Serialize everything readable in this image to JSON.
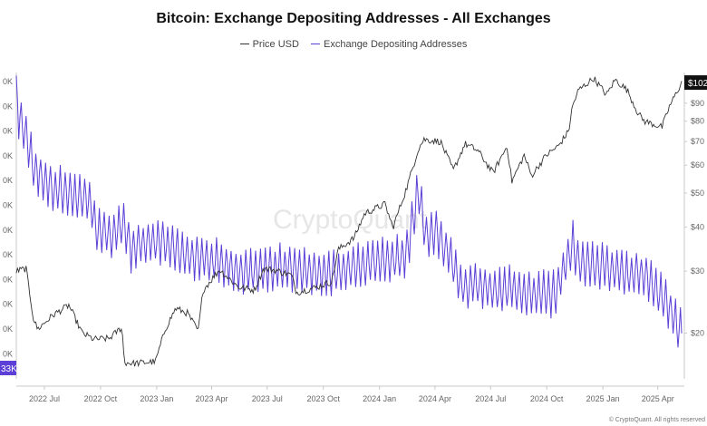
{
  "chart_data": {
    "type": "line",
    "title": "Bitcoin: Exchange Depositing Addresses - All Exchanges",
    "watermark": "CryptoQuant",
    "credit": "© CryptoQuant. All rights reserved",
    "legend_position": "top-center",
    "grid": false,
    "x_tick_labels": [
      "2022 Jul",
      "2022 Oct",
      "2023 Jan",
      "2023 Apr",
      "2023 Jul",
      "2023 Oct",
      "2024 Jan",
      "2024 Apr",
      "2024 Jul",
      "2024 Oct",
      "2025 Jan",
      "2025 Apr"
    ],
    "x_range": [
      "2022-05-16",
      "2025-05-10"
    ],
    "left_axis_labels": [
      "0K",
      "0K",
      "0K",
      "0K",
      "0K",
      "0K",
      "0K",
      "0K",
      "0K",
      "0K",
      "0K",
      "0K"
    ],
    "left_axis_current": "33K",
    "right_axis_labels": [
      "$90",
      "$80",
      "$70",
      "$60",
      "$50",
      "$40",
      "$30",
      "$20"
    ],
    "right_axis_values": [
      90000,
      80000,
      70000,
      60000,
      50000,
      40000,
      30000,
      20000
    ],
    "right_axis_current": "$102",
    "y_right_range": [
      15000,
      110000
    ],
    "y_right_scale": "log",
    "series": [
      {
        "name": "Price USD",
        "color": "#333333",
        "axis": "right",
        "x": [
          "2022-05-16",
          "2022-06-01",
          "2022-06-13",
          "2022-06-20",
          "2022-07-15",
          "2022-08-10",
          "2022-09-01",
          "2022-09-20",
          "2022-10-15",
          "2022-11-05",
          "2022-11-09",
          "2022-11-25",
          "2022-12-30",
          "2023-01-15",
          "2023-02-01",
          "2023-02-20",
          "2023-03-10",
          "2023-03-18",
          "2023-04-14",
          "2023-05-15",
          "2023-06-10",
          "2023-06-25",
          "2023-07-15",
          "2023-08-10",
          "2023-08-18",
          "2023-09-20",
          "2023-10-15",
          "2023-10-25",
          "2023-11-20",
          "2023-12-08",
          "2024-01-10",
          "2024-01-23",
          "2024-02-15",
          "2024-03-05",
          "2024-03-14",
          "2024-04-10",
          "2024-05-01",
          "2024-05-20",
          "2024-06-10",
          "2024-07-05",
          "2024-07-28",
          "2024-08-05",
          "2024-08-25",
          "2024-09-06",
          "2024-09-30",
          "2024-10-20",
          "2024-11-06",
          "2024-11-12",
          "2024-11-22",
          "2024-12-17",
          "2025-01-07",
          "2025-01-21",
          "2025-02-10",
          "2025-02-28",
          "2025-03-10",
          "2025-04-08",
          "2025-04-20",
          "2025-05-10"
        ],
        "values": [
          30000,
          30500,
          22000,
          20500,
          22500,
          24000,
          20000,
          19200,
          19300,
          20800,
          16500,
          16400,
          16600,
          20500,
          23500,
          22800,
          20300,
          26500,
          30300,
          27000,
          26500,
          30500,
          30200,
          29200,
          26100,
          27000,
          28000,
          34500,
          37200,
          43800,
          46500,
          39900,
          52000,
          67000,
          71000,
          70000,
          58000,
          69000,
          66000,
          57000,
          68000,
          54000,
          64000,
          56000,
          64000,
          68000,
          75000,
          88000,
          98000,
          106000,
          95000,
          105000,
          98000,
          84000,
          80000,
          77000,
          88000,
          103000
        ]
      },
      {
        "name": "Exchange Depositing Addresses",
        "color": "#5b3fd6",
        "axis": "left",
        "x": [
          "2022-05-16",
          "2022-05-20",
          "2022-06-05",
          "2022-06-15",
          "2022-07-15",
          "2022-08-15",
          "2022-09-15",
          "2022-09-25",
          "2022-10-20",
          "2022-11-09",
          "2022-11-20",
          "2022-12-15",
          "2023-01-15",
          "2023-02-15",
          "2023-03-15",
          "2023-04-15",
          "2023-05-15",
          "2023-06-15",
          "2023-07-15",
          "2023-08-15",
          "2023-09-15",
          "2023-10-15",
          "2023-11-15",
          "2023-12-15",
          "2024-01-15",
          "2024-02-15",
          "2024-03-05",
          "2024-03-15",
          "2024-04-01",
          "2024-04-20",
          "2024-05-15",
          "2024-06-15",
          "2024-07-15",
          "2024-08-05",
          "2024-08-25",
          "2024-09-15",
          "2024-10-15",
          "2024-11-12",
          "2024-11-25",
          "2024-12-15",
          "2025-01-15",
          "2025-02-15",
          "2025-03-15",
          "2025-04-15",
          "2025-05-10"
        ],
        "values_relative": [
          0.98,
          0.85,
          0.76,
          0.68,
          0.62,
          0.6,
          0.58,
          0.48,
          0.46,
          0.5,
          0.42,
          0.44,
          0.44,
          0.4,
          0.39,
          0.38,
          0.34,
          0.35,
          0.36,
          0.35,
          0.34,
          0.34,
          0.36,
          0.37,
          0.38,
          0.4,
          0.62,
          0.47,
          0.48,
          0.42,
          0.3,
          0.3,
          0.28,
          0.29,
          0.27,
          0.27,
          0.27,
          0.44,
          0.37,
          0.37,
          0.36,
          0.34,
          0.33,
          0.24,
          0.14
        ]
      }
    ]
  }
}
